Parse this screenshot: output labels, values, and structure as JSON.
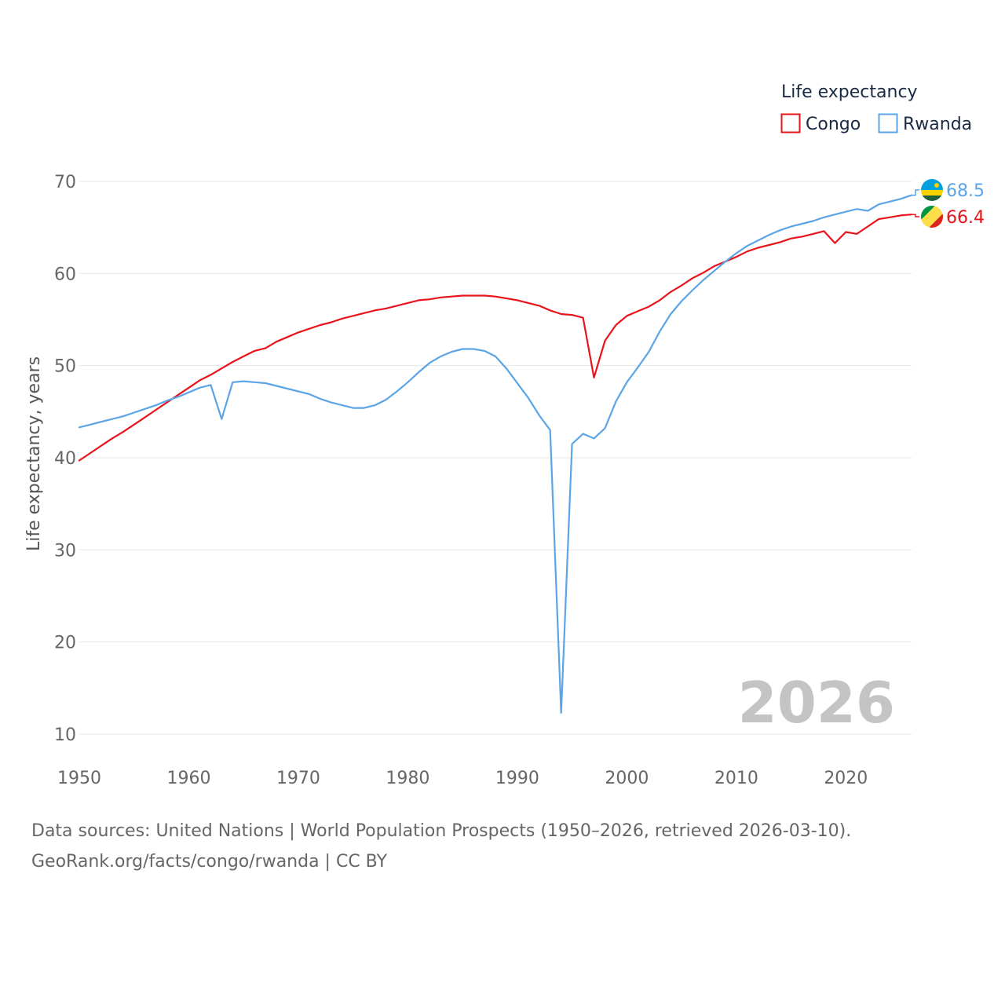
{
  "chart_data": {
    "type": "line",
    "title": "Life expectancy",
    "ylabel": "Life expectancy, years",
    "xlabel": "",
    "xlim": [
      1950,
      2026
    ],
    "ylim": [
      10,
      70
    ],
    "x_ticks": [
      1950,
      1960,
      1970,
      1980,
      1990,
      2000,
      2010,
      2020
    ],
    "y_ticks": [
      10,
      20,
      30,
      40,
      50,
      60,
      70
    ],
    "current_year_label": "2026",
    "legend": {
      "title": "Life expectancy",
      "position": "top-right"
    },
    "x": [
      1950,
      1951,
      1952,
      1953,
      1954,
      1955,
      1956,
      1957,
      1958,
      1959,
      1960,
      1961,
      1962,
      1963,
      1964,
      1965,
      1966,
      1967,
      1968,
      1969,
      1970,
      1971,
      1972,
      1973,
      1974,
      1975,
      1976,
      1977,
      1978,
      1979,
      1980,
      1981,
      1982,
      1983,
      1984,
      1985,
      1986,
      1987,
      1988,
      1989,
      1990,
      1991,
      1992,
      1993,
      1994,
      1995,
      1996,
      1997,
      1998,
      1999,
      2000,
      2001,
      2002,
      2003,
      2004,
      2005,
      2006,
      2007,
      2008,
      2009,
      2010,
      2011,
      2012,
      2013,
      2014,
      2015,
      2016,
      2017,
      2018,
      2019,
      2020,
      2021,
      2022,
      2023,
      2024,
      2025,
      2026
    ],
    "series": [
      {
        "name": "Congo",
        "color": "#e8141c",
        "end_value": "66.4",
        "flag_icon": "congo-flag-icon",
        "values": [
          39.7,
          40.5,
          41.3,
          42.1,
          42.8,
          43.6,
          44.4,
          45.2,
          46.0,
          46.8,
          47.6,
          48.4,
          49.0,
          49.7,
          50.4,
          51.0,
          51.6,
          51.9,
          52.6,
          53.1,
          53.6,
          54.0,
          54.4,
          54.7,
          55.1,
          55.4,
          55.7,
          56.0,
          56.2,
          56.5,
          56.8,
          57.1,
          57.2,
          57.4,
          57.5,
          57.6,
          57.6,
          57.6,
          57.5,
          57.3,
          57.1,
          56.8,
          56.5,
          56.0,
          55.6,
          55.5,
          55.2,
          48.7,
          52.7,
          54.4,
          55.4,
          55.9,
          56.4,
          57.1,
          58.0,
          58.7,
          59.5,
          60.1,
          60.8,
          61.3,
          61.8,
          62.4,
          62.8,
          63.1,
          63.4,
          63.8,
          64.0,
          64.3,
          64.6,
          63.3,
          64.5,
          64.3,
          65.1,
          65.9,
          66.1,
          66.3,
          66.4
        ]
      },
      {
        "name": "Rwanda",
        "color": "#5ba4e6",
        "end_value": "68.5",
        "flag_icon": "rwanda-flag-icon",
        "values": [
          43.3,
          43.6,
          43.9,
          44.2,
          44.5,
          44.9,
          45.3,
          45.7,
          46.2,
          46.6,
          47.1,
          47.6,
          47.9,
          44.2,
          48.2,
          48.3,
          48.2,
          48.1,
          47.8,
          47.5,
          47.2,
          46.9,
          46.4,
          46.0,
          45.7,
          45.4,
          45.4,
          45.7,
          46.3,
          47.2,
          48.2,
          49.3,
          50.3,
          51.0,
          51.5,
          51.8,
          51.8,
          51.6,
          51.0,
          49.7,
          48.1,
          46.5,
          44.6,
          43.0,
          12.3,
          41.5,
          42.6,
          42.1,
          43.2,
          46.1,
          48.2,
          49.8,
          51.5,
          53.7,
          55.6,
          57.0,
          58.2,
          59.3,
          60.3,
          61.3,
          62.2,
          63.0,
          63.6,
          64.2,
          64.7,
          65.1,
          65.4,
          65.7,
          66.1,
          66.4,
          66.7,
          67.0,
          66.8,
          67.5,
          67.8,
          68.1,
          68.5
        ]
      }
    ]
  },
  "footer": {
    "line1": "Data sources: United Nations | World Population Prospects (1950–2026, retrieved 2026-03-10).",
    "line2": "GeoRank.org/facts/congo/rwanda | CC BY"
  }
}
